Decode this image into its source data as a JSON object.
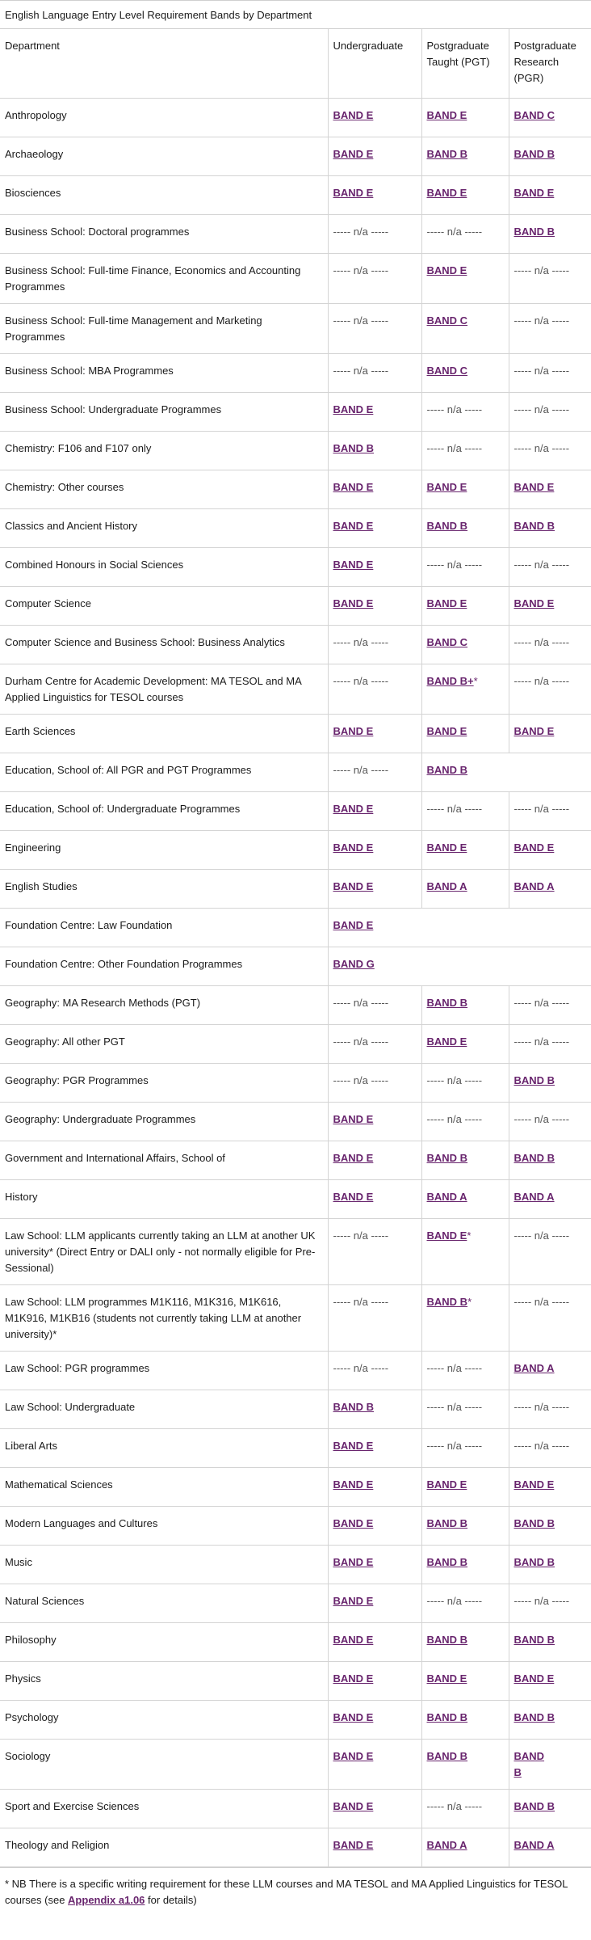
{
  "table": {
    "caption": "English Language Entry Level Requirement Bands by Department",
    "headers": {
      "department": "Department",
      "undergraduate": "Undergraduate",
      "pgt": "Postgraduate Taught (PGT)",
      "pgr": "Postgraduate Research (PGR)"
    },
    "rows": [
      {
        "dept": "Anthropology",
        "ug": "BAND E",
        "pgt": "BAND E",
        "pgr": "BAND C"
      },
      {
        "dept": "Archaeology",
        "ug": "BAND E",
        "pgt": "BAND B",
        "pgr": "BAND B"
      },
      {
        "dept": "Biosciences",
        "ug": "BAND E",
        "pgt": "BAND E",
        "pgr": "BAND E"
      },
      {
        "dept": "Business School: Doctoral programmes",
        "ug": "n/a",
        "pgt": "n/a",
        "pgr": "BAND B"
      },
      {
        "dept": "Business School: Full-time Finance, Economics and Accounting Programmes",
        "ug": "n/a",
        "pgt": "BAND E",
        "pgr": "n/a"
      },
      {
        "dept": "Business School: Full-time Management and Marketing Programmes",
        "ug": "n/a",
        "pgt": "BAND C",
        "pgr": "n/a"
      },
      {
        "dept": "Business School: MBA Programmes",
        "ug": "n/a",
        "pgt": "BAND C",
        "pgr": "n/a"
      },
      {
        "dept": "Business School: Undergraduate Programmes",
        "ug": "BAND E",
        "pgt": "n/a",
        "pgr": "n/a"
      },
      {
        "dept": "Chemistry: F106 and F107 only",
        "ug": "BAND B",
        "pgt": "n/a",
        "pgr": "n/a"
      },
      {
        "dept": "Chemistry: Other courses",
        "ug": "BAND E",
        "pgt": "BAND E",
        "pgr": "BAND E"
      },
      {
        "dept": "Classics and Ancient History",
        "ug": "BAND E",
        "pgt": "BAND B",
        "pgr": "BAND B"
      },
      {
        "dept": "Combined Honours in Social Sciences",
        "ug": "BAND E",
        "pgt": "n/a",
        "pgr": "n/a"
      },
      {
        "dept": "Computer Science",
        "ug": "BAND E",
        "pgt": "BAND E",
        "pgr": "BAND E"
      },
      {
        "dept": "Computer Science and Business School: Business Analytics",
        "ug": "n/a",
        "pgt": "BAND C",
        "pgr": "n/a"
      },
      {
        "dept": "Durham Centre for Academic Development: MA TESOL and MA Applied Linguistics for TESOL courses",
        "ug": "n/a",
        "pgt": "BAND B+",
        "pgt_star": "*",
        "pgr": "n/a"
      },
      {
        "dept": "Earth Sciences",
        "ug": "BAND E",
        "pgt": "BAND E",
        "pgr": "BAND E"
      },
      {
        "dept": "Education, School of: All PGR and PGT Programmes",
        "ug": "n/a",
        "pgt": "BAND B",
        "span": "pgt-pgr"
      },
      {
        "dept": "Education, School of: Undergraduate Programmes",
        "ug": "BAND E",
        "pgt": "n/a",
        "pgr": "n/a"
      },
      {
        "dept": "Engineering",
        "ug": "BAND E",
        "pgt": "BAND E",
        "pgr": "BAND E"
      },
      {
        "dept": "English Studies",
        "ug": "BAND E",
        "pgt": "BAND A",
        "pgr": "BAND A"
      },
      {
        "dept": "Foundation Centre: Law Foundation",
        "ug": "BAND E",
        "span": "all"
      },
      {
        "dept": "Foundation Centre: Other Foundation Programmes",
        "ug": "BAND G",
        "span": "all"
      },
      {
        "dept": "Geography: MA Research Methods (PGT)",
        "ug": "n/a",
        "pgt": "BAND B",
        "pgr": "n/a"
      },
      {
        "dept": "Geography: All other PGT",
        "ug": "n/a",
        "pgt": "BAND E",
        "pgr": "n/a"
      },
      {
        "dept": "Geography: PGR Programmes",
        "ug": "n/a",
        "pgt": "n/a",
        "pgr": "BAND B"
      },
      {
        "dept": "Geography: Undergraduate Programmes",
        "ug": "BAND E",
        "pgt": "n/a",
        "pgr": "n/a"
      },
      {
        "dept": "Government and International Affairs, School of",
        "ug": "BAND E",
        "pgt": "BAND B",
        "pgr": "BAND B"
      },
      {
        "dept": "History",
        "ug": "BAND E",
        "pgt": "BAND A",
        "pgr": "BAND A"
      },
      {
        "dept": "Law School: LLM applicants currently taking an LLM at another UK university* (Direct Entry or DALI only - not normally eligible for Pre-Sessional)",
        "ug": "n/a",
        "pgt": "BAND E",
        "pgt_star": "*",
        "pgr": "n/a"
      },
      {
        "dept": "Law School: LLM programmes M1K116, M1K316, M1K616, M1K916, M1KB16 (students not currently taking LLM at another university)*",
        "ug": "n/a",
        "pgt": "BAND B",
        "pgt_star": "*",
        "pgr": "n/a"
      },
      {
        "dept": "Law School: PGR programmes",
        "ug": "n/a",
        "pgt": "n/a",
        "pgr": "BAND A"
      },
      {
        "dept": "Law School: Undergraduate",
        "ug": "BAND B",
        "pgt": "n/a",
        "pgr": "n/a"
      },
      {
        "dept": "Liberal Arts",
        "ug": "BAND E",
        "pgt": "n/a",
        "pgr": "n/a"
      },
      {
        "dept": "Mathematical Sciences",
        "ug": "BAND E",
        "pgt": "BAND E",
        "pgr": "BAND E"
      },
      {
        "dept": "Modern Languages and Cultures",
        "ug": "BAND E",
        "pgt": "BAND B",
        "pgr": "BAND B"
      },
      {
        "dept": "Music",
        "ug": "BAND E",
        "pgt": "BAND B",
        "pgr": "BAND B"
      },
      {
        "dept": "Natural Sciences",
        "ug": "BAND E",
        "pgt": "n/a",
        "pgr": "n/a"
      },
      {
        "dept": "Philosophy",
        "ug": "BAND E",
        "pgt": "BAND B",
        "pgr": "BAND B"
      },
      {
        "dept": "Physics",
        "ug": "BAND E",
        "pgt": "BAND E",
        "pgr": "BAND E"
      },
      {
        "dept": "Psychology",
        "ug": "BAND E",
        "pgt": "BAND B",
        "pgr": "BAND B"
      },
      {
        "dept": "Sociology",
        "ug": "BAND E",
        "pgt": "BAND B",
        "pgr": "BAND B",
        "pgr_wrap": true
      },
      {
        "dept": "Sport and Exercise Sciences",
        "ug": "BAND E",
        "pgt": "n/a",
        "pgr": "BAND B"
      },
      {
        "dept": "Theology and Religion",
        "ug": "BAND E",
        "pgt": "BAND A",
        "pgr": "BAND A"
      }
    ]
  },
  "na_text": "----- n/a -----",
  "footnote": {
    "before": "* NB There is a specific writing requirement for these LLM courses and MA TESOL and MA Applied Linguistics for TESOL courses (see ",
    "link": "Appendix a1.06",
    "after": " for details)"
  },
  "colors": {
    "link": "#68246d",
    "border": "#d4d4d4"
  }
}
